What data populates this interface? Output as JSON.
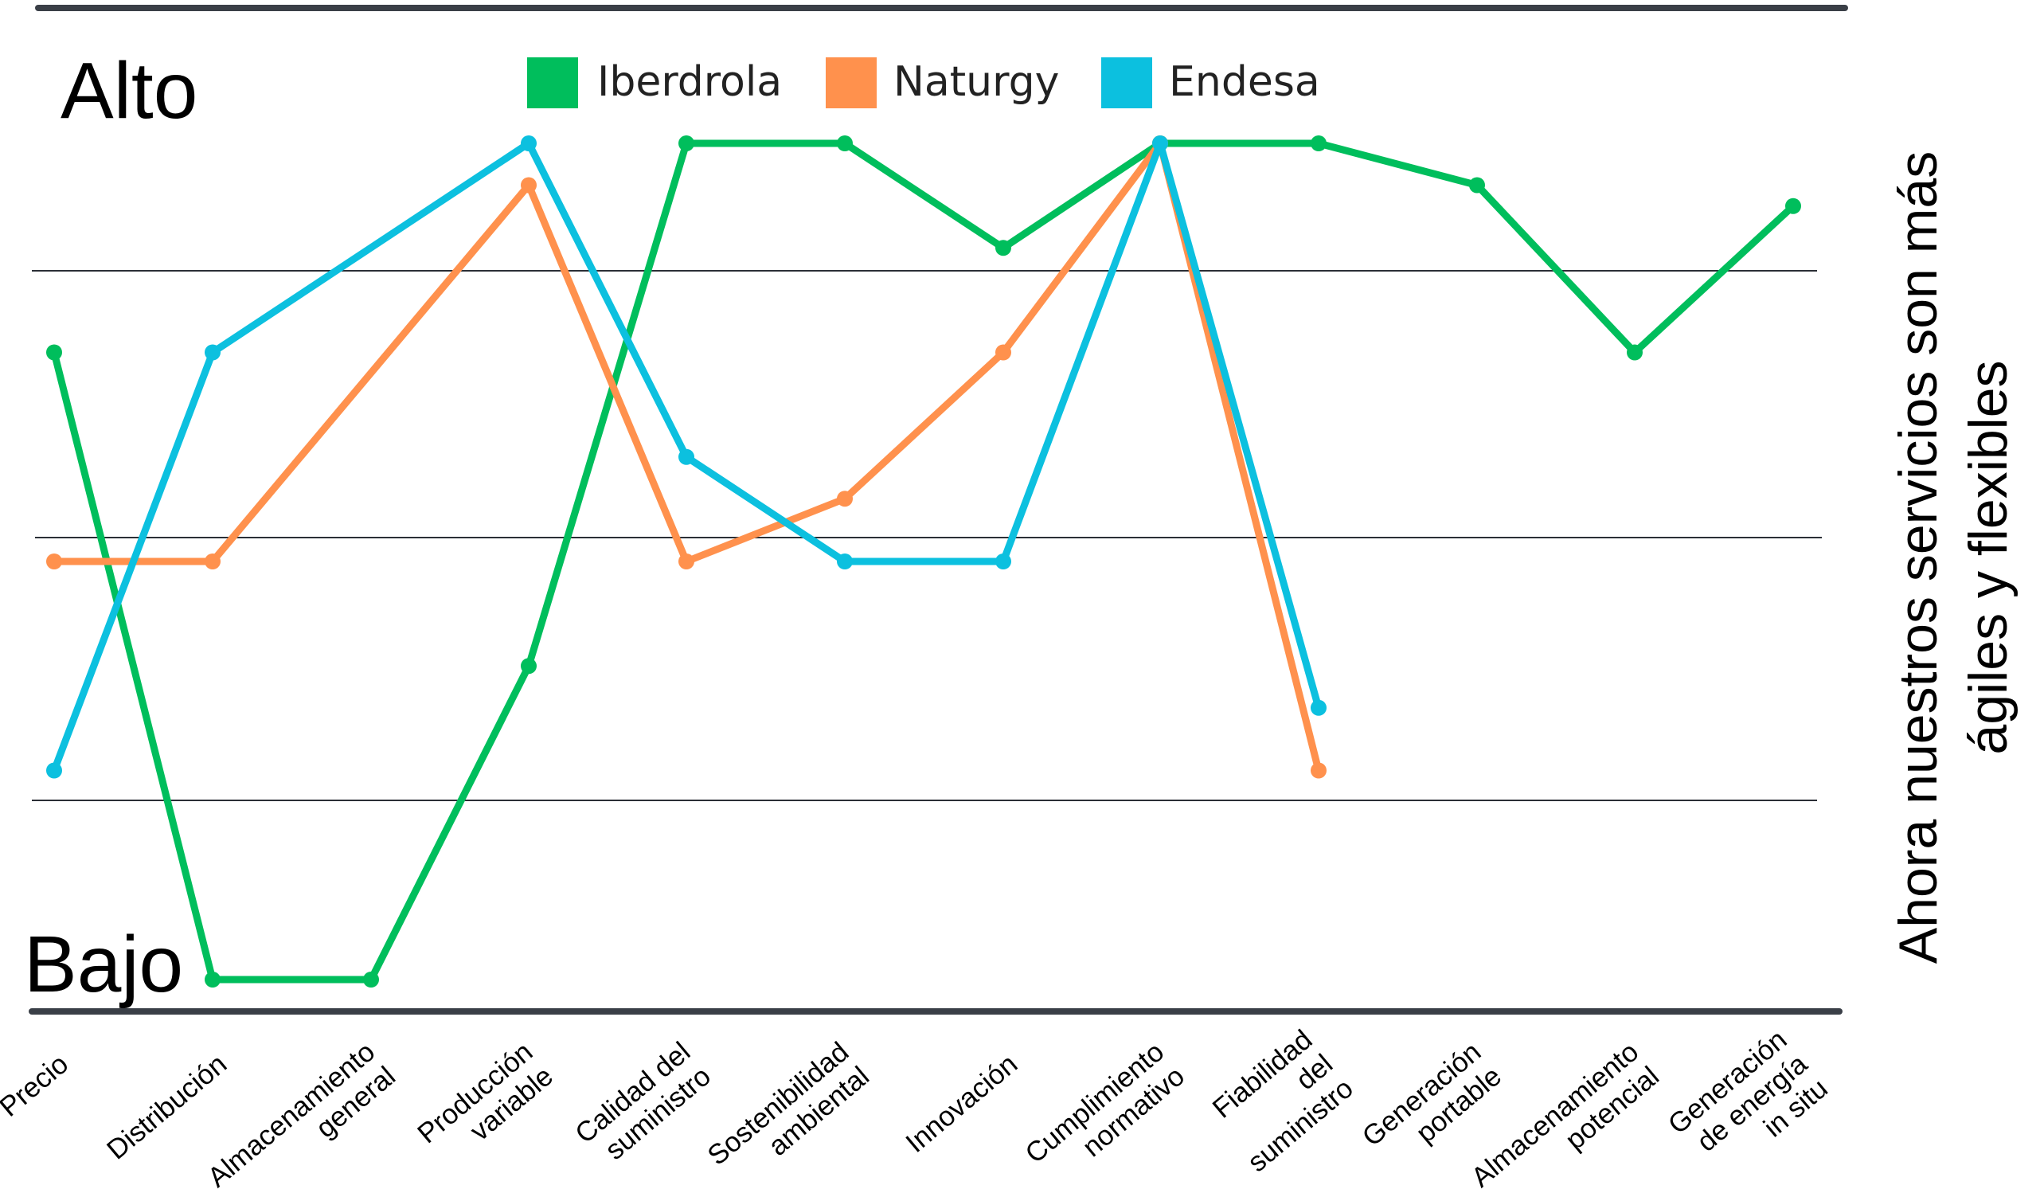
{
  "chart_data": {
    "type": "line",
    "title": "",
    "ylabel": "Ahora nuestros servicios son más ágiles y flexibles",
    "y_levels": {
      "high": "Alto",
      "low": "Bajo"
    },
    "ylim": [
      0,
      8
    ],
    "grid": true,
    "legend_position": "top-center",
    "categories": [
      "Precio",
      "Distribución",
      "Almacenamiento general",
      "Producción variable",
      "Calidad del suministro",
      "Sostenibilidad ambiental",
      "Innovación",
      "Cumplimiento normativo",
      "Fiabilidad del suministro",
      "Generación portable",
      "Almacenamiento potencial",
      "Generación de energía in situ"
    ],
    "series": [
      {
        "name": "Iberdrola",
        "color": "#00be5c",
        "values": [
          6.0,
          0.0,
          0.0,
          3.0,
          8.0,
          8.0,
          7.0,
          8.0,
          8.0,
          7.6,
          6.0,
          7.4
        ]
      },
      {
        "name": "Naturgy",
        "color": "#ff914d",
        "values": [
          4.0,
          4.0,
          null,
          7.6,
          4.0,
          4.6,
          6.0,
          8.0,
          2.0,
          null,
          null,
          null
        ]
      },
      {
        "name": "Endesa",
        "color": "#0cc0df",
        "values": [
          2.0,
          6.0,
          null,
          8.0,
          5.0,
          4.0,
          4.0,
          8.0,
          2.6,
          null,
          null,
          null
        ]
      }
    ]
  }
}
